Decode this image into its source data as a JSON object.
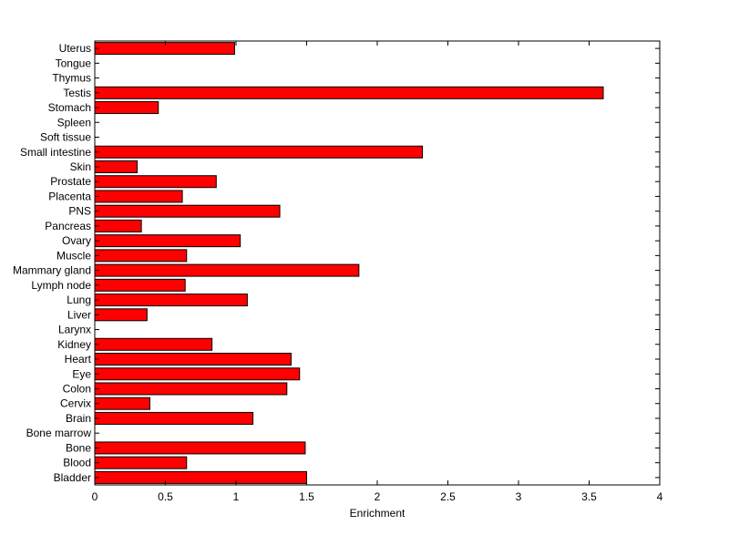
{
  "chart_data": {
    "type": "bar",
    "orientation": "horizontal",
    "title": "",
    "xlabel": "Enrichment",
    "ylabel": "",
    "xlim": [
      0,
      4
    ],
    "xticks": [
      0,
      0.5,
      1,
      1.5,
      2,
      2.5,
      3,
      3.5,
      4
    ],
    "xtick_labels": [
      "0",
      "0.5",
      "1",
      "1.5",
      "2",
      "2.5",
      "3",
      "3.5",
      "4"
    ],
    "grid": false,
    "bar_color": "#ff0000",
    "bar_edge_color": "#000000",
    "categories": [
      "Uterus",
      "Tongue",
      "Thymus",
      "Testis",
      "Stomach",
      "Spleen",
      "Soft tissue",
      "Small intestine",
      "Skin",
      "Prostate",
      "Placenta",
      "PNS",
      "Pancreas",
      "Ovary",
      "Muscle",
      "Mammary gland",
      "Lymph node",
      "Lung",
      "Liver",
      "Larynx",
      "Kidney",
      "Heart",
      "Eye",
      "Colon",
      "Cervix",
      "Brain",
      "Bone marrow",
      "Bone",
      "Blood",
      "Bladder"
    ],
    "values": [
      0.99,
      0,
      0,
      3.6,
      0.45,
      0,
      0,
      2.32,
      0.3,
      0.86,
      0.62,
      1.31,
      0.33,
      1.03,
      0.65,
      1.87,
      0.64,
      1.08,
      0.37,
      0,
      0.83,
      1.39,
      1.45,
      1.36,
      0.39,
      1.12,
      0,
      1.49,
      0.65,
      1.5
    ]
  }
}
